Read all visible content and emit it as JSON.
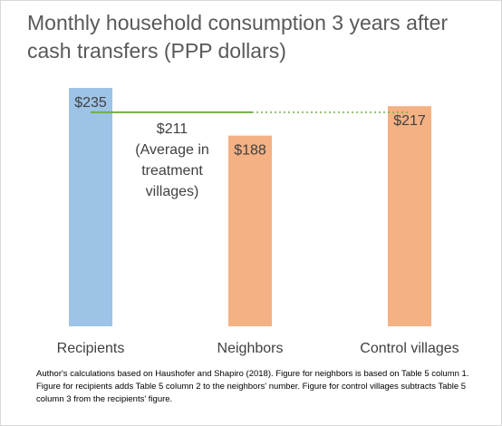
{
  "title": "Monthly household consumption 3 years after cash transfers (PPP dollars)",
  "note": "Author's calculations based on Haushofer and Shapiro (2018). Figure for neighbors is based on Table 5 column 1. Figure for recipients adds Table 5 column 2 to the neighbors' number. Figure for control villages subtracts Table 5 column 3 from the recipients' figure.",
  "chart_data": {
    "type": "bar",
    "title": "Monthly household consumption 3 years after cash transfers (PPP dollars)",
    "categories": [
      "Recipients",
      "Neighbors",
      "Control villages"
    ],
    "values": [
      235,
      188,
      217
    ],
    "data_labels": [
      "$235",
      "$188",
      "$217"
    ],
    "bar_colors": [
      "#9dc3e6",
      "#f4b183",
      "#f4b183"
    ],
    "ylim": [
      0,
      235
    ],
    "grid": false,
    "reference_line": {
      "value": 211,
      "label": [
        "$211",
        "(Average in",
        "treatment",
        "villages)"
      ],
      "color": "#70ad47"
    }
  }
}
